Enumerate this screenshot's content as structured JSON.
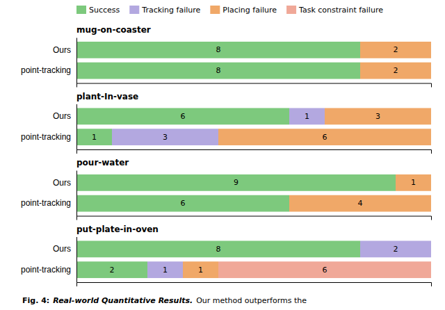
{
  "chart_data": [
    {
      "type": "bar",
      "title": "mug-on-coaster",
      "orientation": "horizontal",
      "stacked": true,
      "data_labels": true,
      "tick_labels": "y",
      "legend": "upper left",
      "categories": [
        "Ours",
        "point-tracking"
      ],
      "xlim": [
        0,
        10
      ],
      "series": [
        {
          "name": "Success",
          "color": "#7dc97d",
          "values": [
            8,
            8
          ]
        },
        {
          "name": "Tracking failure",
          "color": "#b3a8e0",
          "values": [
            null,
            null
          ]
        },
        {
          "name": "Placing failure",
          "color": "#f0a868",
          "values": [
            2,
            2
          ]
        },
        {
          "name": "Task constraint failure",
          "color": "#f0a898",
          "values": [
            null,
            null
          ]
        }
      ]
    },
    {
      "type": "bar",
      "title": "plant-In-vase",
      "orientation": "horizontal",
      "stacked": true,
      "data_labels": true,
      "tick_labels": "y",
      "categories": [
        "Ours",
        "point-tracking"
      ],
      "xlim": [
        0,
        10
      ],
      "series": [
        {
          "color": "#7dc97d",
          "values": [
            6,
            1
          ]
        },
        {
          "color": "#b3a8e0",
          "values": [
            1,
            3
          ]
        },
        {
          "color": "#f0a868",
          "values": [
            3,
            6
          ]
        },
        {
          "color": "#f0a898",
          "values": [
            null,
            null
          ]
        }
      ]
    },
    {
      "type": "bar",
      "title": "pour-water",
      "orientation": "horizontal",
      "stacked": true,
      "data_labels": true,
      "tick_labels": "y",
      "categories": [
        "Ours",
        "point-tracking"
      ],
      "xlim": [
        0,
        10
      ],
      "series": [
        {
          "color": "#7dc97d",
          "values": [
            9,
            6
          ]
        },
        {
          "color": "#b3a8e0",
          "values": [
            null,
            null
          ]
        },
        {
          "color": "#f0a868",
          "values": [
            1,
            4
          ]
        },
        {
          "color": "#f0a898",
          "values": [
            null,
            null
          ]
        }
      ]
    },
    {
      "type": "bar",
      "title": "put-plate-in-oven",
      "orientation": "horizontal",
      "stacked": true,
      "data_labels": true,
      "tick_labels": "y",
      "categories": [
        "Ours",
        "point-tracking"
      ],
      "xlim": [
        0,
        10
      ],
      "series": [
        {
          "color": "#7dc97d",
          "values": [
            8,
            2
          ]
        },
        {
          "color": "#b3a8e0",
          "values": [
            2,
            1
          ]
        },
        {
          "color": "#f0a868",
          "values": [
            null,
            1
          ]
        },
        {
          "color": "#f0a898",
          "values": [
            null,
            6
          ]
        }
      ],
      "annotations": [
        "Fig. 4:",
        "Real-world Quantitative Results.",
        "Our method outperforms the"
      ]
    }
  ]
}
